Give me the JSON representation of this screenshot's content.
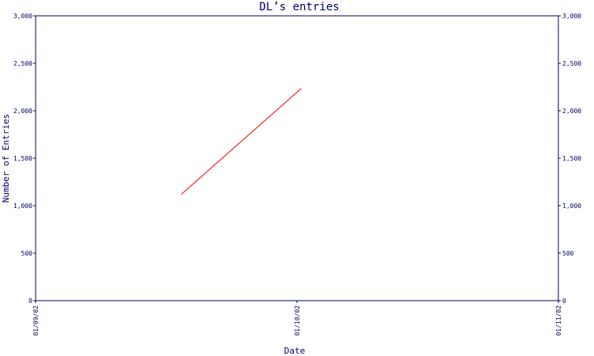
{
  "chart_data": {
    "type": "line",
    "title": "DL’s entries",
    "xlabel": "Date",
    "ylabel": "Number of Entries",
    "x_ticks": [
      "01/09/02",
      "01/10/02",
      "01/11/02"
    ],
    "y_ticks": [
      "0",
      "500",
      "1,000",
      "1,500",
      "2,000",
      "2,500",
      "3,000"
    ],
    "ylim": [
      0,
      3000
    ],
    "xlim": [
      "2002-09-01",
      "2002-11-01"
    ],
    "grid": false,
    "series": [
      {
        "color": "#ff0000",
        "points": [
          {
            "x": "2002-09-18",
            "y": 1120
          },
          {
            "x": "2002-10-02",
            "y": 2235
          }
        ]
      }
    ],
    "colors": {
      "axis": "#000066",
      "line": "#ff0000",
      "background": "#ffffff"
    }
  }
}
